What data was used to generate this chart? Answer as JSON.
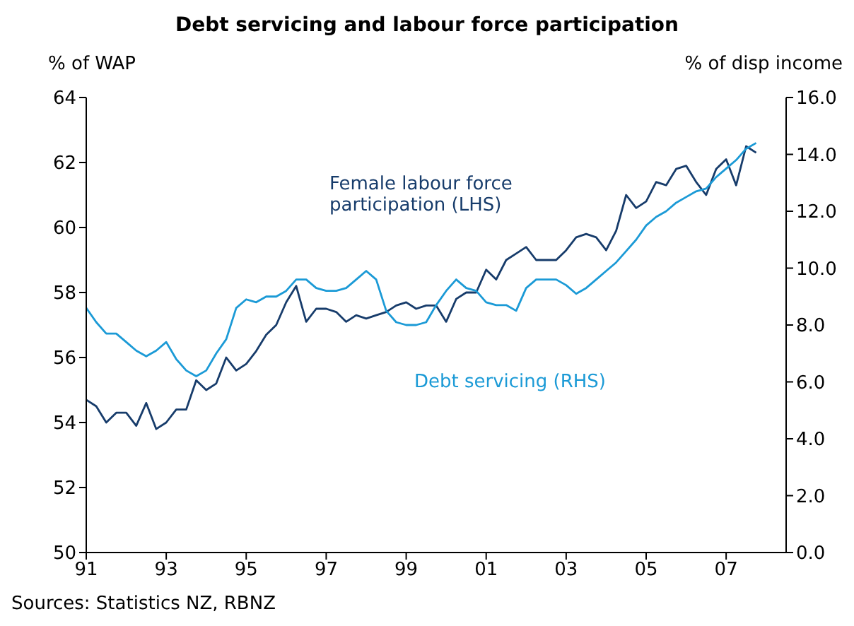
{
  "chart_data": {
    "type": "line",
    "title": "Debt servicing and labour force participation",
    "ylabel": "% of WAP",
    "y2label": "% of disp income",
    "annotations": [
      "Sources: Statistics NZ, RBNZ"
    ],
    "x": [
      1991,
      1991.25,
      1991.5,
      1991.75,
      1992,
      1992.25,
      1992.5,
      1992.75,
      1993,
      1993.25,
      1993.5,
      1993.75,
      1994,
      1994.25,
      1994.5,
      1994.75,
      1995,
      1995.25,
      1995.5,
      1995.75,
      1996,
      1996.25,
      1996.5,
      1996.75,
      1997,
      1997.25,
      1997.5,
      1997.75,
      1998,
      1998.25,
      1998.5,
      1998.75,
      1999,
      1999.25,
      1999.5,
      1999.75,
      2000,
      2000.25,
      2000.5,
      2000.75,
      2001,
      2001.25,
      2001.5,
      2001.75,
      2002,
      2002.25,
      2002.5,
      2002.75,
      2003,
      2003.25,
      2003.5,
      2003.75,
      2004,
      2004.25,
      2004.5,
      2004.75,
      2005,
      2005.25,
      2005.5,
      2005.75,
      2006,
      2006.25,
      2006.5,
      2006.75,
      2007,
      2007.25,
      2007.5,
      2007.75
    ],
    "series": [
      {
        "name": "Female labour force participation (LHS)",
        "color": "#173c6b",
        "values": [
          54.7,
          54.5,
          54.0,
          54.3,
          54.3,
          53.9,
          54.6,
          53.8,
          54.0,
          54.4,
          54.4,
          55.3,
          55.0,
          55.2,
          56.0,
          55.6,
          55.8,
          56.2,
          56.7,
          57.0,
          57.7,
          58.2,
          57.1,
          57.5,
          57.5,
          57.4,
          57.1,
          57.3,
          57.2,
          57.3,
          57.4,
          57.6,
          57.7,
          57.5,
          57.6,
          57.6,
          57.1,
          57.8,
          58.0,
          58.0,
          58.7,
          58.4,
          59.0,
          59.2,
          59.4,
          59.0,
          59.0,
          59.0,
          59.3,
          59.7,
          59.8,
          59.7,
          59.3,
          59.9,
          61.0,
          60.6,
          60.8,
          61.4,
          61.3,
          61.8,
          61.9,
          61.4,
          61.0,
          61.8,
          62.1,
          61.3,
          62.5,
          62.3
        ]
      },
      {
        "name": "Debt servicing (RHS)",
        "color": "#1b9ad6",
        "axis": "y2",
        "values": [
          8.6,
          8.1,
          7.7,
          7.7,
          7.4,
          7.1,
          6.9,
          7.1,
          7.4,
          6.8,
          6.4,
          6.2,
          6.4,
          7.0,
          7.5,
          8.6,
          8.9,
          8.8,
          9.0,
          9.0,
          9.2,
          9.6,
          9.6,
          9.3,
          9.2,
          9.2,
          9.3,
          9.6,
          9.9,
          9.6,
          8.5,
          8.1,
          8.0,
          8.0,
          8.1,
          8.7,
          9.2,
          9.6,
          9.3,
          9.2,
          8.8,
          8.7,
          8.7,
          8.5,
          9.3,
          9.6,
          9.6,
          9.6,
          9.4,
          9.1,
          9.3,
          9.6,
          9.9,
          10.2,
          10.6,
          11.0,
          11.5,
          11.8,
          12.0,
          12.3,
          12.5,
          12.7,
          12.8,
          13.2,
          13.5,
          13.8,
          14.2,
          14.4
        ]
      }
    ],
    "xlim": [
      1991,
      2008.5
    ],
    "xticks": [
      {
        "value": 1991,
        "label": "91"
      },
      {
        "value": 1993,
        "label": "93"
      },
      {
        "value": 1995,
        "label": "95"
      },
      {
        "value": 1997,
        "label": "97"
      },
      {
        "value": 1999,
        "label": "99"
      },
      {
        "value": 2001,
        "label": "01"
      },
      {
        "value": 2003,
        "label": "03"
      },
      {
        "value": 2005,
        "label": "05"
      },
      {
        "value": 2007,
        "label": "07"
      }
    ],
    "ylim": [
      50,
      64
    ],
    "yticks": [
      50,
      52,
      54,
      56,
      58,
      60,
      62,
      64
    ],
    "y2lim": [
      0,
      16
    ],
    "y2ticks": [
      {
        "value": 0,
        "label": "0.0"
      },
      {
        "value": 2,
        "label": "2.0"
      },
      {
        "value": 4,
        "label": "4.0"
      },
      {
        "value": 6,
        "label": "6.0"
      },
      {
        "value": 8,
        "label": "8.0"
      },
      {
        "value": 10,
        "label": "10.0"
      },
      {
        "value": 12,
        "label": "12.0"
      },
      {
        "value": 14,
        "label": "14.0"
      },
      {
        "value": 16,
        "label": "16.0"
      }
    ],
    "legend": false,
    "grid": false,
    "marker": "none",
    "line_style": "solid"
  }
}
